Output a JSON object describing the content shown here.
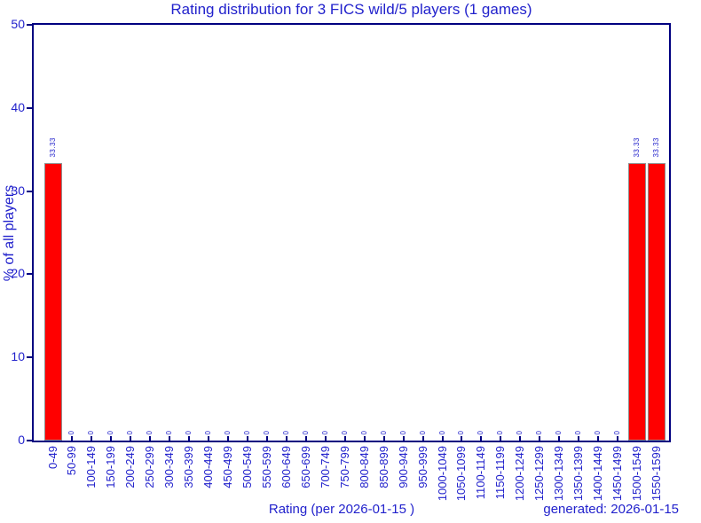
{
  "chart_data": {
    "type": "bar",
    "title": "Rating distribution for 3 FICS wild/5 players (1 games)",
    "xlabel": "Rating (per 2026-01-15 )",
    "ylabel": "% of all players",
    "generated_label": "generated: 2026-01-15",
    "categories": [
      "0-49",
      "50-99",
      "100-149",
      "150-199",
      "200-249",
      "250-299",
      "300-349",
      "350-399",
      "400-449",
      "450-499",
      "500-549",
      "550-599",
      "600-649",
      "650-699",
      "700-749",
      "750-799",
      "800-849",
      "850-899",
      "900-949",
      "950-999",
      "1000-1049",
      "1050-1099",
      "1100-1149",
      "1150-1199",
      "1200-1249",
      "1250-1299",
      "1300-1349",
      "1350-1399",
      "1400-1449",
      "1450-1499",
      "1500-1549",
      "1550-1599"
    ],
    "values": [
      33.33,
      0,
      0,
      0,
      0,
      0,
      0,
      0,
      0,
      0,
      0,
      0,
      0,
      0,
      0,
      0,
      0,
      0,
      0,
      0,
      0,
      0,
      0,
      0,
      0,
      0,
      0,
      0,
      0,
      0,
      33.33,
      33.33
    ],
    "value_labels": [
      "33.33",
      "0",
      "0",
      "0",
      "0",
      "0",
      "0",
      "0",
      "0",
      "0",
      "0",
      "0",
      "0",
      "0",
      "0",
      "0",
      "0",
      "0",
      "0",
      "0",
      "0",
      "0",
      "0",
      "0",
      "0",
      "0",
      "0",
      "0",
      "0",
      "0",
      "33.33",
      "33.33"
    ],
    "ylim": [
      0,
      50
    ],
    "yticks": [
      0,
      10,
      20,
      30,
      40,
      50
    ],
    "grid": false,
    "legend": null,
    "colors": {
      "bar_fill": "#ff0000",
      "bar_border": "#909090",
      "axis_frame": "#000080",
      "text_blue": "#2222cc",
      "background": "#ffffff"
    }
  }
}
